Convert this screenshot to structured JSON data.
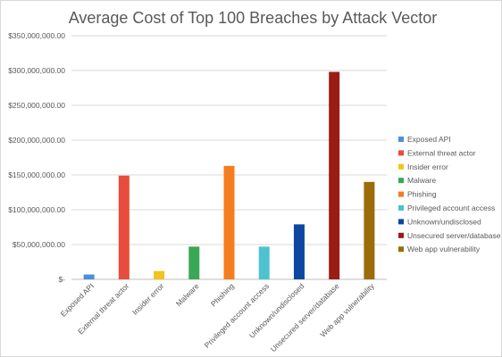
{
  "chart_data": {
    "type": "bar",
    "title": "Average Cost of Top 100 Breaches by Attack Vector",
    "xlabel": "",
    "ylabel": "",
    "categories": [
      "Exposed API",
      "External threat actor",
      "Insider error",
      "Malware",
      "Phishing",
      "Privileged account access",
      "Unknown/undisclosed",
      "Unsecured server/database",
      "Web app vulnerability"
    ],
    "values": [
      7000000,
      149000000,
      12000000,
      47000000,
      163000000,
      47000000,
      79000000,
      298000000,
      140000000
    ],
    "colors": [
      "#4a90d9",
      "#e84c3d",
      "#f2c31b",
      "#3aa757",
      "#f57c1f",
      "#4dc3cf",
      "#0d47a1",
      "#9b1c14",
      "#9c6b0a"
    ],
    "ylim": [
      0,
      350000000
    ],
    "yticks": [
      0,
      50000000,
      100000000,
      150000000,
      200000000,
      250000000,
      300000000,
      350000000
    ],
    "ytick_labels": [
      "$-",
      "$50,000,000.00",
      "$100,000,000.00",
      "$150,000,000.00",
      "$200,000,000.00",
      "$250,000,000.00",
      "$300,000,000.00",
      "$350,000,000.00"
    ],
    "grid": true,
    "legend_position": "right",
    "legend": [
      "Exposed API",
      "External threat actor",
      "Insider error",
      "Malware",
      "Phishing",
      "Privileged account access",
      "Unknown/undisclosed",
      "Unsecured server/database",
      "Web app vulnerability"
    ]
  }
}
